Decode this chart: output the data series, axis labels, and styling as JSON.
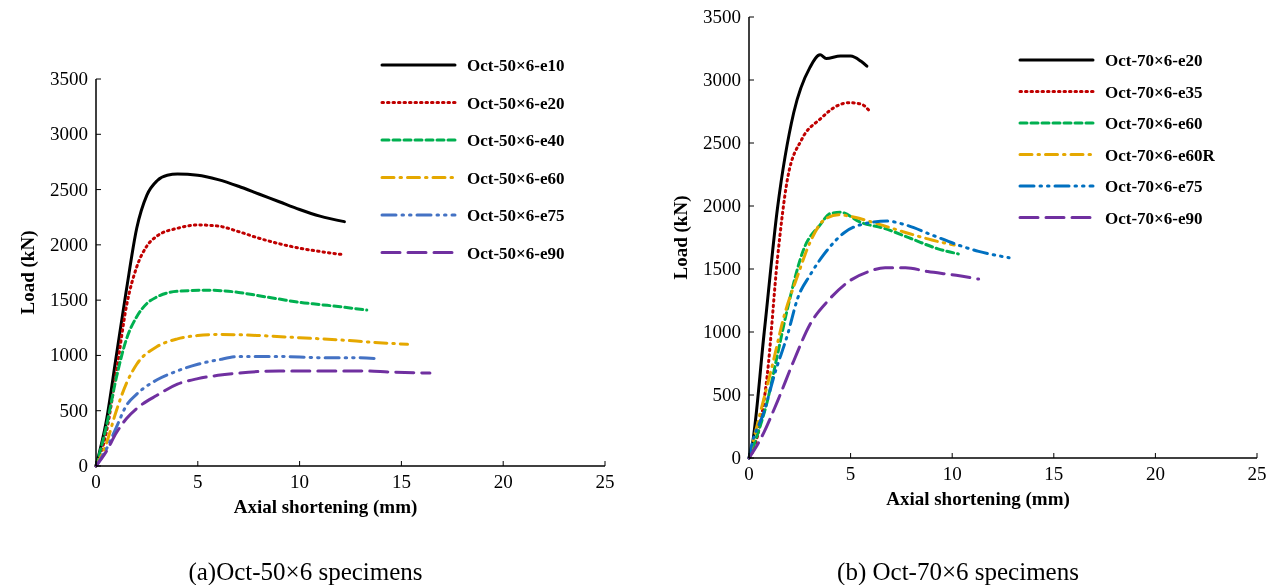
{
  "chart_data": [
    {
      "type": "line",
      "title": "(a)Oct-50×6 specimens",
      "xlabel": "Axial shortening (mm)",
      "ylabel": "Load (kN)",
      "xlim": [
        0,
        25
      ],
      "xticks": [
        0,
        5,
        10,
        15,
        20,
        25
      ],
      "ylim": [
        0,
        3500
      ],
      "yticks": [
        0,
        500,
        1000,
        1500,
        2000,
        2500,
        3000,
        3500
      ],
      "legend": "top right",
      "grid": false,
      "series": [
        {
          "name": "Oct-50×6-e10",
          "color": "#000000",
          "line_style": "solid",
          "x": [
            0,
            0.5,
            1,
            1.5,
            2,
            2.5,
            3,
            3.5,
            4,
            5,
            6,
            7,
            8,
            9,
            10,
            11,
            12.2
          ],
          "values": [
            0,
            400,
            1000,
            1600,
            2150,
            2450,
            2580,
            2630,
            2640,
            2630,
            2590,
            2530,
            2460,
            2390,
            2320,
            2260,
            2210
          ]
        },
        {
          "name": "Oct-50×6-e20",
          "color": "#c00000",
          "line_style": "dotted",
          "x": [
            0,
            0.5,
            1,
            1.5,
            2,
            2.5,
            3,
            4,
            5,
            6,
            7,
            8,
            9,
            10,
            11,
            12.2
          ],
          "values": [
            0,
            300,
            850,
            1450,
            1800,
            1990,
            2080,
            2150,
            2180,
            2170,
            2120,
            2060,
            2010,
            1970,
            1940,
            1910
          ]
        },
        {
          "name": "Oct-50×6-e40",
          "color": "#00b050",
          "line_style": "dashed",
          "x": [
            0,
            0.5,
            1,
            1.5,
            2,
            2.5,
            3,
            4,
            5.5,
            7,
            8,
            9,
            10,
            11,
            12,
            13.3
          ],
          "values": [
            0,
            350,
            800,
            1150,
            1350,
            1470,
            1530,
            1580,
            1590,
            1570,
            1540,
            1510,
            1480,
            1460,
            1440,
            1410
          ]
        },
        {
          "name": "Oct-50×6-e60",
          "color": "#e5a800",
          "line_style": "dashdot",
          "x": [
            0,
            0.5,
            1,
            1.5,
            2,
            3,
            4,
            5,
            6,
            8,
            10,
            12,
            13.5,
            15.3
          ],
          "values": [
            0,
            200,
            500,
            750,
            920,
            1080,
            1150,
            1180,
            1190,
            1180,
            1160,
            1140,
            1120,
            1100
          ]
        },
        {
          "name": "Oct-50×6-e75",
          "color": "#4472c4",
          "line_style": "dashdotdot",
          "x": [
            0,
            0.5,
            1,
            1.5,
            2,
            3,
            4,
            5,
            6,
            7,
            9,
            11,
            12.5,
            13.9
          ],
          "values": [
            0,
            150,
            350,
            550,
            650,
            780,
            860,
            920,
            960,
            990,
            990,
            980,
            980,
            970
          ]
        },
        {
          "name": "Oct-50×6-e90",
          "color": "#7030a0",
          "line_style": "longdash",
          "x": [
            0,
            0.5,
            1,
            1.5,
            2,
            3,
            4,
            5,
            6,
            7,
            9,
            11,
            13,
            14.5,
            16.4
          ],
          "values": [
            0,
            130,
            300,
            430,
            520,
            640,
            740,
            790,
            820,
            840,
            860,
            860,
            860,
            850,
            840
          ]
        }
      ]
    },
    {
      "type": "line",
      "title": "(b) Oct-70×6 specimens",
      "xlabel": "Axial shortening (mm)",
      "ylabel": "Load (kN)",
      "xlim": [
        0,
        25
      ],
      "xticks": [
        0,
        5,
        10,
        15,
        20,
        25
      ],
      "ylim": [
        0,
        3500
      ],
      "yticks": [
        0,
        500,
        1000,
        1500,
        2000,
        2500,
        3000,
        3500
      ],
      "legend": "top right",
      "grid": false,
      "series": [
        {
          "name": "Oct-70×6-e20",
          "color": "#000000",
          "line_style": "solid",
          "x": [
            0,
            0.1,
            0.75,
            1.4,
            2.2,
            3,
            3.5,
            3.8,
            4.5,
            5,
            5.5,
            5.8
          ],
          "values": [
            0,
            50,
            1000,
            1980,
            2740,
            3100,
            3200,
            3170,
            3190,
            3190,
            3150,
            3110
          ]
        },
        {
          "name": "Oct-70×6-e35",
          "color": "#c00000",
          "line_style": "dotted",
          "x": [
            0,
            0.25,
            0.9,
            1.4,
            1.9,
            2.6,
            3.5,
            4.4,
            4.9,
            5.5,
            6
          ],
          "values": [
            0,
            80,
            660,
            1580,
            2220,
            2530,
            2690,
            2800,
            2820,
            2810,
            2740
          ]
        },
        {
          "name": "Oct-70×6-e60",
          "color": "#00b050",
          "line_style": "dashed",
          "x": [
            0,
            0.4,
            0.9,
            1.4,
            1.9,
            2.7,
            3.5,
            4,
            4.5,
            5.5,
            6.7,
            8,
            9.3,
            10.3
          ],
          "values": [
            0,
            180,
            450,
            820,
            1190,
            1660,
            1850,
            1940,
            1950,
            1870,
            1820,
            1740,
            1660,
            1620
          ]
        },
        {
          "name": "Oct-70×6-e60R",
          "color": "#e5a800",
          "line_style": "dashdot",
          "x": [
            0,
            0.4,
            1.2,
            1.7,
            2.4,
            3,
            3.7,
            4.4,
            5.2,
            6.3,
            7.7,
            9,
            10.1
          ],
          "values": [
            0,
            260,
            770,
            1110,
            1450,
            1710,
            1890,
            1930,
            1910,
            1860,
            1790,
            1730,
            1690
          ]
        },
        {
          "name": "Oct-70×6-e75",
          "color": "#0070c0",
          "line_style": "dashdotdot",
          "x": [
            0,
            0.1,
            0.75,
            1.25,
            1.9,
            2.4,
            3,
            3.9,
            4.7,
            5.7,
            6.8,
            7.7,
            9,
            10.3,
            11.3,
            12.8
          ],
          "values": [
            0,
            80,
            370,
            660,
            980,
            1270,
            1450,
            1660,
            1790,
            1860,
            1880,
            1850,
            1770,
            1690,
            1640,
            1590
          ]
        },
        {
          "name": "Oct-70×6-e90",
          "color": "#7030a0",
          "line_style": "longdash",
          "x": [
            0,
            0.6,
            1.4,
            2.2,
            3,
            3.9,
            4.9,
            5.9,
            6.7,
            7.7,
            8.8,
            10.2,
            11.3
          ],
          "values": [
            0,
            160,
            450,
            770,
            1060,
            1250,
            1400,
            1480,
            1510,
            1510,
            1480,
            1450,
            1420
          ]
        }
      ]
    }
  ]
}
